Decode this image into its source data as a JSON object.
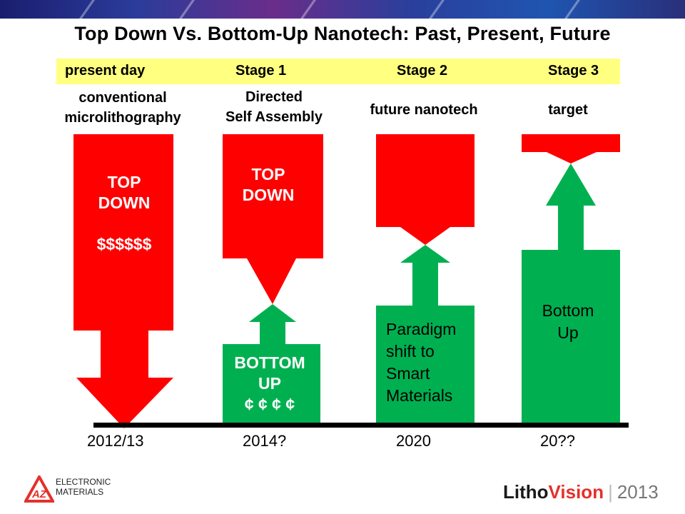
{
  "slide": {
    "title": "Top Down Vs. Bottom-Up Nanotech: Past, Present, Future"
  },
  "stages": [
    {
      "label": "present day",
      "sub_lines": [
        "conventional",
        "microlithography"
      ],
      "top_text": [
        "TOP",
        "DOWN",
        "",
        "$$$$$$"
      ],
      "bottom_text": [],
      "date": "2012/13"
    },
    {
      "label": "Stage 1",
      "sub_lines": [
        "Directed",
        "Self Assembly"
      ],
      "top_text": [
        "TOP",
        "DOWN"
      ],
      "bottom_text": [
        "BOTTOM",
        "UP",
        "¢ ¢ ¢ ¢"
      ],
      "date": "2014?"
    },
    {
      "label": "Stage 2",
      "sub_lines": [
        "future nanotech"
      ],
      "top_text": [],
      "bottom_text": [
        "Paradigm",
        "shift to",
        "Smart",
        "Materials"
      ],
      "date": "2020"
    },
    {
      "label": "Stage 3",
      "sub_lines": [
        "target"
      ],
      "top_text": [],
      "bottom_text": [
        "Bottom",
        "Up"
      ],
      "date": "20??"
    }
  ],
  "colors": {
    "top_down": "#ff0000",
    "bottom_up": "#00b050",
    "stage_bar": "#ffff80",
    "baseline": "#000000"
  },
  "footer": {
    "company_logo_letters": "AZ",
    "company_line1": "ELECTRONIC",
    "company_line2": "MATERIALS",
    "brand_part1": "Litho",
    "brand_part2": "Vision",
    "brand_year": "2013"
  }
}
